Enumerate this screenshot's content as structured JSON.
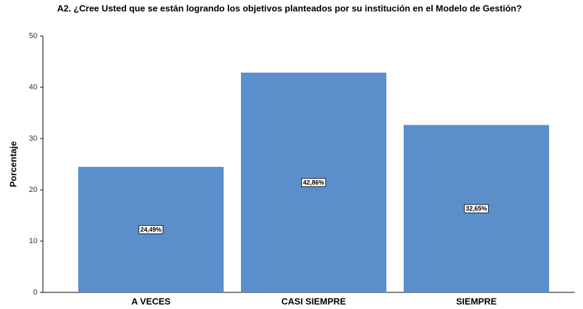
{
  "chart_data": {
    "type": "bar",
    "title": "A2. ¿Cree Usted que se están logrando los objetivos planteados por su institución en el Modelo de Gestión?",
    "y_label": "Porcentaje",
    "categories": [
      "A VECES",
      "CASI SIEMPRE",
      "SIEMPRE"
    ],
    "values": [
      24.49,
      42.86,
      32.65
    ],
    "value_labels": [
      "24,49%",
      "42,86%",
      "32,65%"
    ],
    "color": "#5b8fcc",
    "ylim": [
      0,
      50
    ],
    "yticks": [
      0,
      10,
      20,
      30,
      40,
      50
    ],
    "grid": false
  }
}
